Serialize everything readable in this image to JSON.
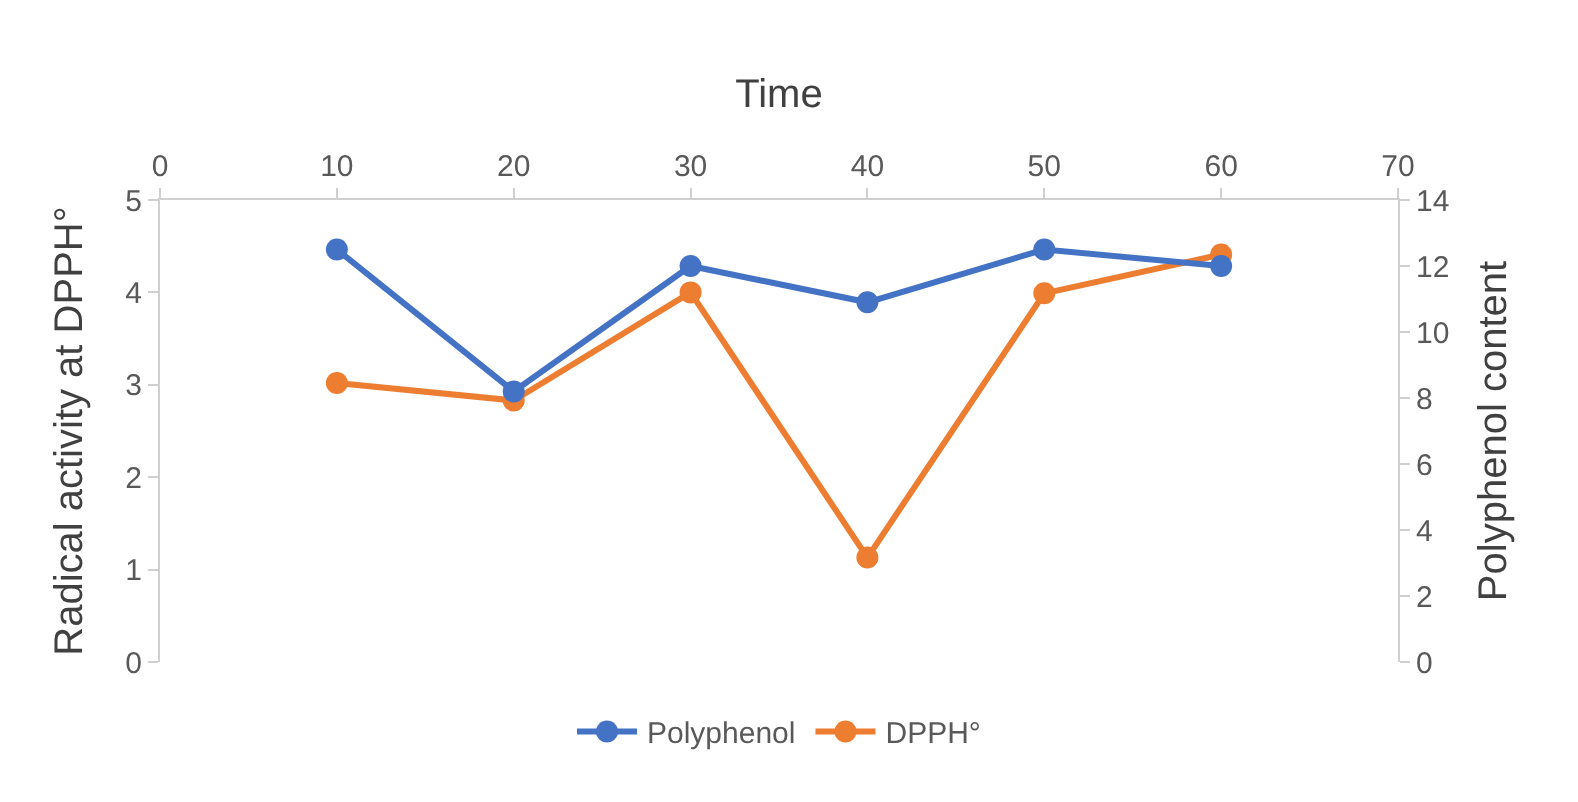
{
  "chart_data": {
    "type": "line",
    "xlabel": "Time",
    "ylabel": "Radical activity at DPPH°",
    "y2label": "Polyphenol content",
    "x": [
      10,
      20,
      30,
      40,
      50,
      60
    ],
    "xlim": [
      0,
      70
    ],
    "xticks": [
      0,
      10,
      20,
      30,
      40,
      50,
      60,
      70
    ],
    "ylim": [
      0,
      5
    ],
    "yticks": [
      0,
      1,
      2,
      3,
      4,
      5
    ],
    "y2lim": [
      0,
      14
    ],
    "y2ticks": [
      0,
      2,
      4,
      6,
      8,
      10,
      12,
      14
    ],
    "series": [
      {
        "name": "Polyphenol",
        "color": "#4472c4",
        "axis": "y2",
        "values": [
          12.5,
          8.2,
          12.0,
          10.9,
          12.5,
          12.0
        ]
      },
      {
        "name": "DPPH°",
        "color": "#ed7d31",
        "values": [
          3.02,
          2.83,
          4.0,
          1.13,
          3.99,
          4.41
        ]
      }
    ],
    "marker": "circle",
    "line_style": "solid",
    "legend": "bottom"
  }
}
